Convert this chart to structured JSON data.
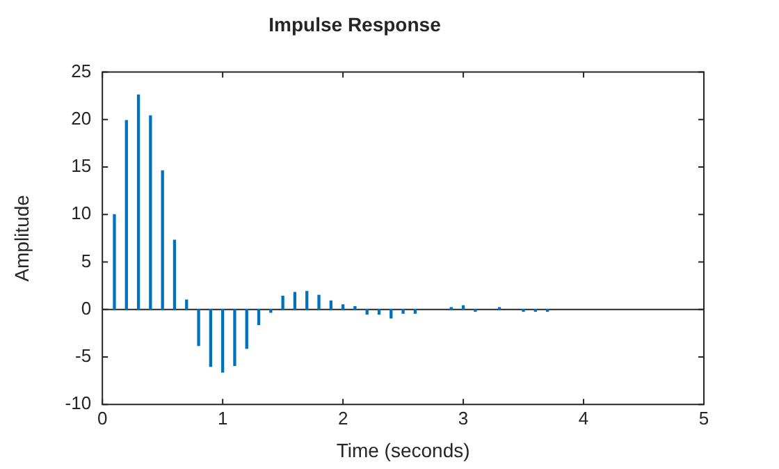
{
  "chart_data": {
    "type": "bar",
    "title": "Impulse Response",
    "xlabel": "Time (seconds)",
    "ylabel": "Amplitude",
    "x": [
      0.1,
      0.2,
      0.3,
      0.4,
      0.5,
      0.6,
      0.7,
      0.8,
      0.9,
      1.0,
      1.1,
      1.2,
      1.3,
      1.4,
      1.5,
      1.6,
      1.7,
      1.8,
      1.9,
      2.0,
      2.1,
      2.2,
      2.3,
      2.4,
      2.5,
      2.6,
      2.9,
      3.0,
      3.1,
      3.3,
      3.5,
      3.6,
      3.7
    ],
    "series": [
      {
        "color": "#0072bd",
        "values": [
          10,
          19.9,
          22.6,
          20.4,
          14.6,
          7.3,
          1.0,
          -3.8,
          -6.0,
          -6.6,
          -5.9,
          -4.1,
          -1.6,
          -0.3,
          1.4,
          1.8,
          1.9,
          1.5,
          0.9,
          0.5,
          0.3,
          -0.5,
          -0.5,
          -0.9,
          -0.4,
          -0.4,
          0.2,
          0.4,
          -0.2,
          0.2,
          -0.2,
          -0.2,
          -0.2
        ]
      }
    ],
    "xlim": [
      0,
      5
    ],
    "xticks": [
      0,
      1,
      2,
      3,
      4,
      5
    ],
    "ylim": [
      -10,
      25
    ],
    "yticks": [
      -10,
      -5,
      0,
      5,
      10,
      15,
      20,
      25
    ],
    "ref_lines": [
      {
        "axis": "y",
        "value": 0,
        "color": "#262626"
      }
    ],
    "grid": false,
    "legend": false
  }
}
